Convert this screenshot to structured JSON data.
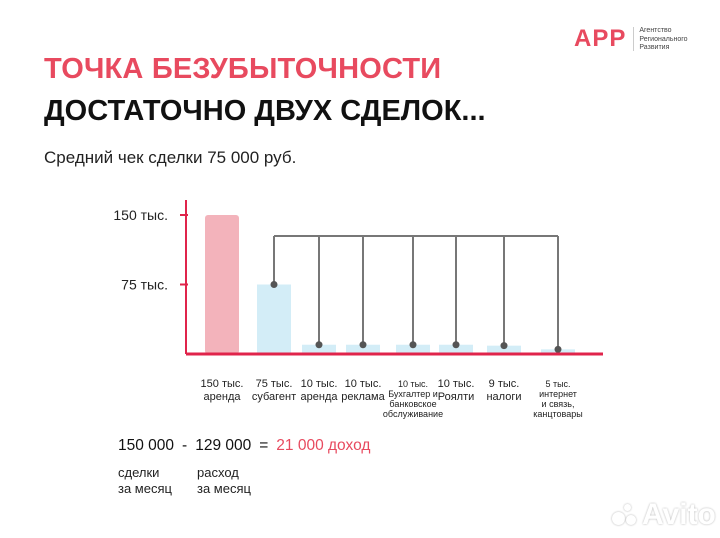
{
  "logo": {
    "mark": "АРР",
    "sub": [
      "Агентство",
      "Регионального",
      "Развития"
    ]
  },
  "title_line1": "ТОЧКА БЕЗУБЫТОЧНОСТИ",
  "title_line2": "ДОСТАТОЧНО ДВУХ СДЕЛОК...",
  "subtitle": "Средний чек сделки 75 000 руб.",
  "formula": {
    "left": "150 000",
    "minus": "-",
    "mid": "129 000",
    "equals": "=",
    "result": "21 000 доход"
  },
  "captions": {
    "deals": "сделки\nза месяц",
    "expense": "расход\nза месяц"
  },
  "watermark": "Avito",
  "colors": {
    "accent": "#e84a5f",
    "income_bar": "#f3b3bb",
    "expense_bar": "#d3edf7",
    "connector": "#777777",
    "axis": "#e0244b"
  },
  "chart_data": {
    "type": "bar",
    "ylim": [
      0,
      150
    ],
    "y_tick_labels": [
      {
        "value": 150,
        "label": "150 тыс."
      },
      {
        "value": 75,
        "label": "75 тыс."
      }
    ],
    "categories": [
      "150 тыс.\nаренда",
      "75 тыс.\nсубагент",
      "10 тыс.\nаренда",
      "10 тыс.\nреклама",
      "10 тыс.\nБухгалтер и\nбанковское\nобслуживание",
      "10 тыс.\nРоялти",
      "9 тыс.\nналоги",
      "5 тыс.\nинтернет\nи связь,\nканцтовары"
    ],
    "values": [
      150,
      75,
      10,
      10,
      10,
      10,
      9,
      5
    ],
    "grid": false,
    "legend": "none"
  }
}
